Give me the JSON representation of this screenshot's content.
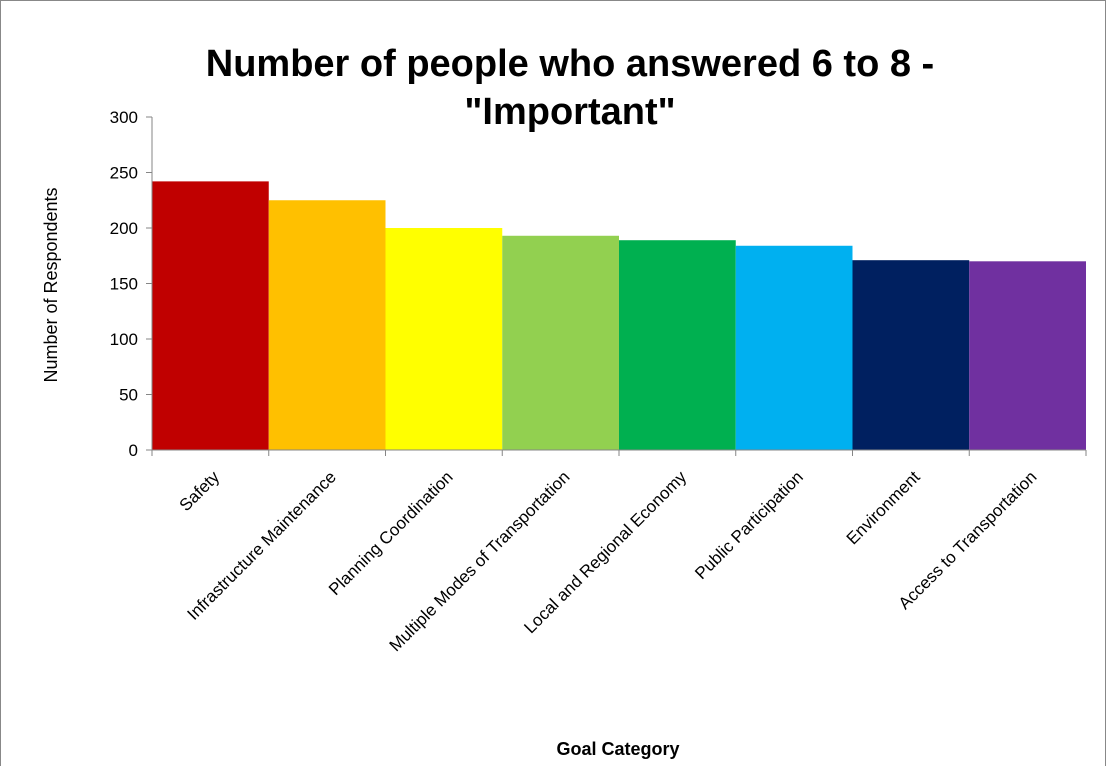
{
  "chart_data": {
    "type": "bar",
    "title_line1": "Number of people who answered 6 to 8 -",
    "title_line2": "\"Important\"",
    "xlabel": "Goal Category",
    "ylabel": "Number of Respondents",
    "ylim": [
      0,
      300
    ],
    "yticks": [
      "0",
      "50",
      "100",
      "150",
      "200",
      "250",
      "300"
    ],
    "grid": false,
    "legend": "none",
    "categories": [
      "Safety",
      "Infrastructure Maintenance",
      "Planning Coordination",
      "Multiple Modes of Transportation",
      "Local and Regional Economy",
      "Public Participation",
      "Environment",
      "Access to Transportation"
    ],
    "values": [
      242,
      225,
      200,
      193,
      189,
      184,
      171,
      170
    ],
    "colors": [
      "#c00000",
      "#ffc000",
      "#ffff00",
      "#92d050",
      "#00b050",
      "#00b0f0",
      "#002060",
      "#7030a0"
    ]
  }
}
